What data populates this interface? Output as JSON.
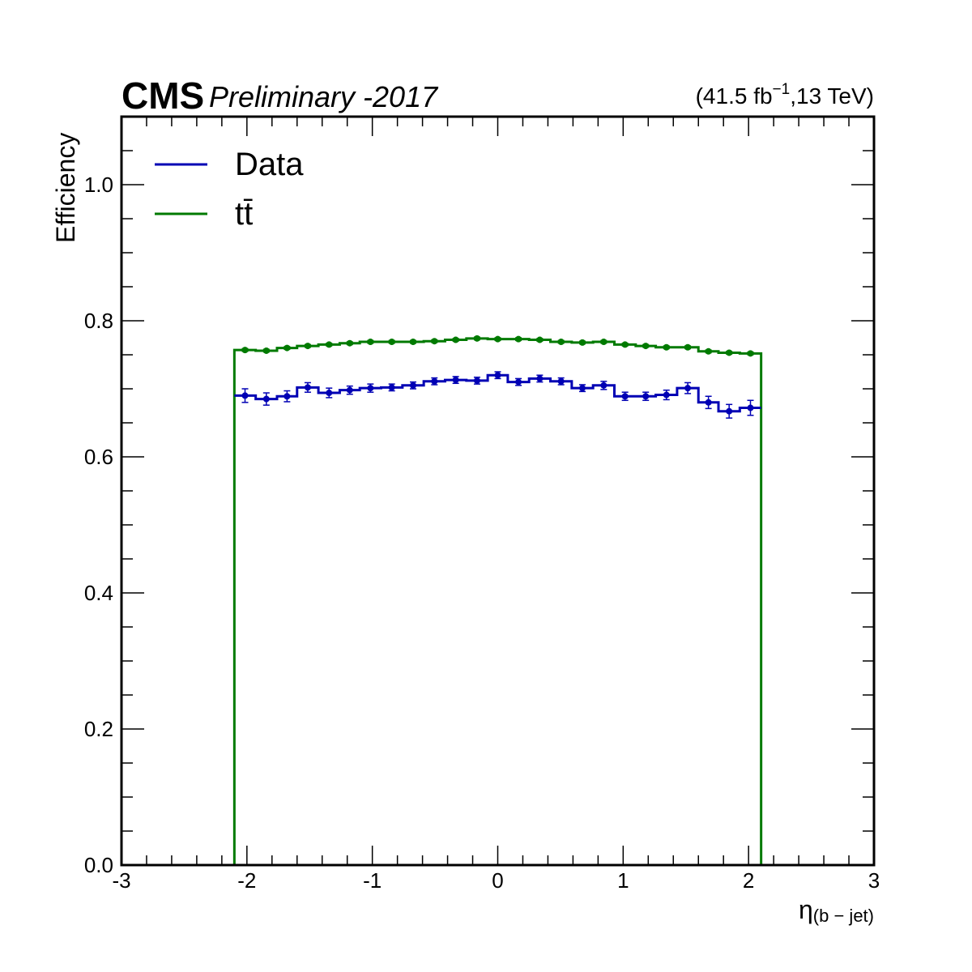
{
  "header": {
    "experiment": "CMS",
    "status": "Preliminary -2017",
    "lumi_prefix": "(41.5 fb",
    "lumi_exp": "−1",
    "lumi_suffix": ",13 TeV)"
  },
  "colors": {
    "data": "#0000b4",
    "ttbar": "#007a00",
    "axis": "#000000"
  },
  "chart_data": {
    "type": "line",
    "xlabel": "η",
    "xlabel_sub": "(b − jet)",
    "ylabel": "Efficiency",
    "xlim": [
      -3,
      3
    ],
    "ylim": [
      0,
      1.1
    ],
    "x_ticks": [
      -3,
      -2,
      -1,
      0,
      1,
      2,
      3
    ],
    "x_tick_labels": [
      "-3",
      "-2",
      "-1",
      "0",
      "1",
      "2",
      "3"
    ],
    "y_ticks": [
      0,
      0.2,
      0.4,
      0.6,
      0.8,
      1.0
    ],
    "y_tick_labels": [
      "0.0",
      "0.2",
      "0.4",
      "0.6",
      "0.8",
      "1.0"
    ],
    "legend_position": "top-left",
    "bin_edges": [
      -2.1,
      -1.93,
      -1.76,
      -1.6,
      -1.43,
      -1.26,
      -1.1,
      -0.93,
      -0.76,
      -0.59,
      -0.42,
      -0.25,
      -0.08,
      0.08,
      0.25,
      0.42,
      0.59,
      0.76,
      0.93,
      1.1,
      1.26,
      1.43,
      1.6,
      1.76,
      1.93,
      2.1
    ],
    "series": [
      {
        "name": "Data",
        "key": "data",
        "values": [
          0.69,
          0.685,
          0.689,
          0.702,
          0.694,
          0.698,
          0.701,
          0.702,
          0.705,
          0.711,
          0.713,
          0.712,
          0.72,
          0.71,
          0.715,
          0.711,
          0.701,
          0.705,
          0.689,
          0.689,
          0.691,
          0.701,
          0.68,
          0.667,
          0.672
        ],
        "errors": [
          0.01,
          0.009,
          0.008,
          0.007,
          0.007,
          0.006,
          0.006,
          0.005,
          0.005,
          0.005,
          0.005,
          0.005,
          0.005,
          0.005,
          0.005,
          0.005,
          0.005,
          0.006,
          0.006,
          0.006,
          0.007,
          0.008,
          0.009,
          0.01,
          0.011
        ]
      },
      {
        "name": "tt̄",
        "key": "ttbar",
        "values": [
          0.757,
          0.756,
          0.76,
          0.763,
          0.765,
          0.767,
          0.769,
          0.769,
          0.769,
          0.77,
          0.772,
          0.774,
          0.773,
          0.773,
          0.772,
          0.769,
          0.768,
          0.769,
          0.765,
          0.763,
          0.761,
          0.761,
          0.755,
          0.753,
          0.752
        ],
        "errors": [
          0.002,
          0.002,
          0.002,
          0.002,
          0.002,
          0.002,
          0.002,
          0.002,
          0.002,
          0.002,
          0.002,
          0.002,
          0.002,
          0.002,
          0.002,
          0.002,
          0.002,
          0.002,
          0.002,
          0.002,
          0.002,
          0.002,
          0.002,
          0.002,
          0.002
        ]
      }
    ]
  }
}
